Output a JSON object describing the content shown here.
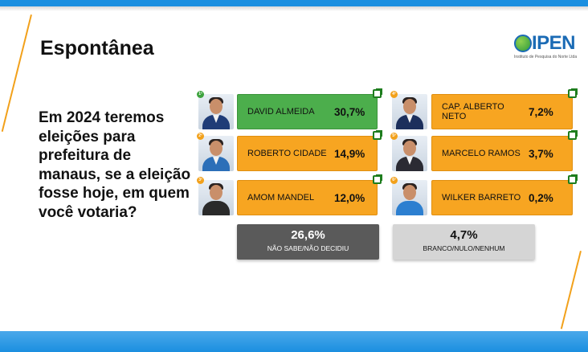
{
  "title": "Espontânea",
  "logo": {
    "text": "IPEN",
    "subtitle": "Instituto de Pesquisa do Norte Ltda"
  },
  "question": "Em 2024 teremos eleições para prefeitura de manaus, se a eleição fosse hoje, em quem você votaria?",
  "candidates": [
    {
      "rank": "1º",
      "name": "DAVID ALMEIDA",
      "pct": "30,7%",
      "color": "#4cae4c"
    },
    {
      "rank": "2º",
      "name": "ROBERTO CIDADE",
      "pct": "14,9%",
      "color": "#f7a521"
    },
    {
      "rank": "3º",
      "name": "AMOM MANDEL",
      "pct": "12,0%",
      "color": "#f7a521"
    },
    {
      "rank": "4º",
      "name": "CAP. ALBERTO NETO",
      "pct": "7,2%",
      "color": "#f7a521"
    },
    {
      "rank": "5º",
      "name": "MARCELO RAMOS",
      "pct": "3,7%",
      "color": "#f7a521"
    },
    {
      "rank": "6º",
      "name": "WILKER BARRETO",
      "pct": "0,2%",
      "color": "#f7a521"
    }
  ],
  "undecided": {
    "value": "26,6%",
    "label": "NÃO SABE/NÃO DECIDIU"
  },
  "blank": {
    "value": "4,7%",
    "label": "BRANCO/NULO/NENHUM"
  },
  "colors": {
    "accent_blue": "#1b8fe0",
    "accent_orange": "#f2a11b",
    "leader_green": "#4cae4c"
  }
}
